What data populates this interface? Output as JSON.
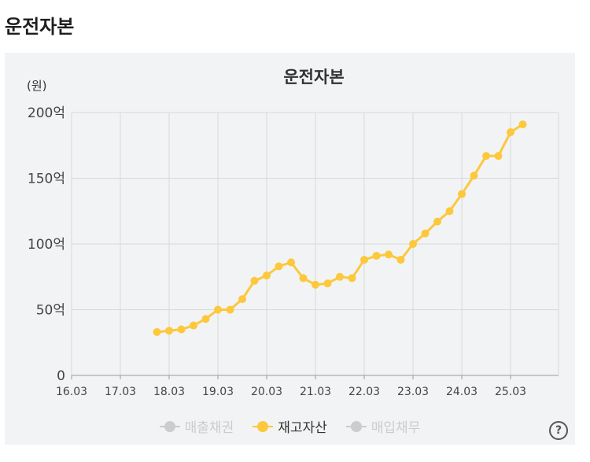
{
  "page": {
    "heading": "운전자본"
  },
  "chart_data": {
    "type": "line",
    "title": "운전자본",
    "y_unit": "(원)",
    "x_ticks": [
      "16.03",
      "17.03",
      "18.03",
      "19.03",
      "20.03",
      "21.03",
      "22.03",
      "23.03",
      "24.03",
      "25.03"
    ],
    "y_ticks": [
      {
        "value": 0,
        "label": "0"
      },
      {
        "value": 50,
        "label": "50억"
      },
      {
        "value": 100,
        "label": "100억"
      },
      {
        "value": 150,
        "label": "150억"
      },
      {
        "value": 200,
        "label": "200억"
      }
    ],
    "ylim": [
      0,
      200
    ],
    "grid": true,
    "legend_position": "bottom",
    "series": [
      {
        "name": "재고자산",
        "color": "#fcc83c",
        "active": true,
        "points": [
          {
            "x": "17.12",
            "y": 33
          },
          {
            "x": "18.03",
            "y": 34
          },
          {
            "x": "18.06",
            "y": 35
          },
          {
            "x": "18.09",
            "y": 38
          },
          {
            "x": "18.12",
            "y": 43
          },
          {
            "x": "19.03",
            "y": 50
          },
          {
            "x": "19.06",
            "y": 50
          },
          {
            "x": "19.09",
            "y": 58
          },
          {
            "x": "19.12",
            "y": 72
          },
          {
            "x": "20.03",
            "y": 76
          },
          {
            "x": "20.06",
            "y": 83
          },
          {
            "x": "20.09",
            "y": 86
          },
          {
            "x": "20.12",
            "y": 74
          },
          {
            "x": "21.03",
            "y": 69
          },
          {
            "x": "21.06",
            "y": 70
          },
          {
            "x": "21.09",
            "y": 75
          },
          {
            "x": "21.12",
            "y": 74
          },
          {
            "x": "22.03",
            "y": 88
          },
          {
            "x": "22.06",
            "y": 91
          },
          {
            "x": "22.09",
            "y": 92
          },
          {
            "x": "22.12",
            "y": 88
          },
          {
            "x": "23.03",
            "y": 100
          },
          {
            "x": "23.06",
            "y": 108
          },
          {
            "x": "23.09",
            "y": 117
          },
          {
            "x": "23.12",
            "y": 125
          },
          {
            "x": "24.03",
            "y": 138
          },
          {
            "x": "24.06",
            "y": 152
          },
          {
            "x": "24.09",
            "y": 167
          },
          {
            "x": "24.12",
            "y": 167
          },
          {
            "x": "25.03",
            "y": 185
          },
          {
            "x": "25.06",
            "y": 191
          }
        ]
      }
    ],
    "legend": [
      {
        "label": "매출채권",
        "color": "#cccccc",
        "active": false
      },
      {
        "label": "재고자산",
        "color": "#fcc83c",
        "active": true
      },
      {
        "label": "매입채무",
        "color": "#cccccc",
        "active": false
      }
    ]
  },
  "help": {
    "icon": "question-circle-icon",
    "glyph": "?"
  }
}
